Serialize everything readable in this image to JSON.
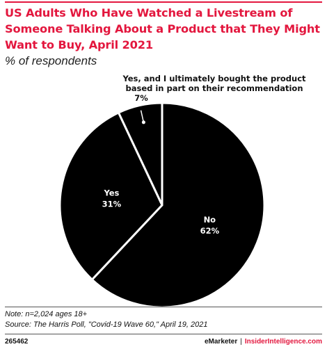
{
  "title": "US Adults Who Have Watched a Livestream of Someone Talking About a Product that They Might Want to Buy, April 2021",
  "subtitle": "% of respondents",
  "chart_data": {
    "type": "pie",
    "slices": [
      {
        "label": "No",
        "value": 62,
        "value_label": "62%",
        "color": "#000000",
        "text_color": "#ffffff"
      },
      {
        "label": "Yes",
        "value": 31,
        "value_label": "31%",
        "color": "#000000",
        "text_color": "#ffffff"
      },
      {
        "label_lines": [
          "Yes, and I ultimately bought the product",
          "based in part on their recommendation"
        ],
        "value": 7,
        "value_label": "7%",
        "color": "#000000",
        "text_color": "#111111",
        "callout": true
      }
    ],
    "slice_border_color": "#ffffff"
  },
  "footer": {
    "note": "Note: n=2,024 ages 18+",
    "source": "Source: The Harris Poll, \"Covid-19 Wave 60,\" April 19, 2021",
    "chart_id": "265462",
    "brand_emarketer": "eMarketer",
    "brand_separator": "|",
    "brand_ii": "InsiderIntelligence.com"
  },
  "colors": {
    "accent": "#e3173e"
  }
}
